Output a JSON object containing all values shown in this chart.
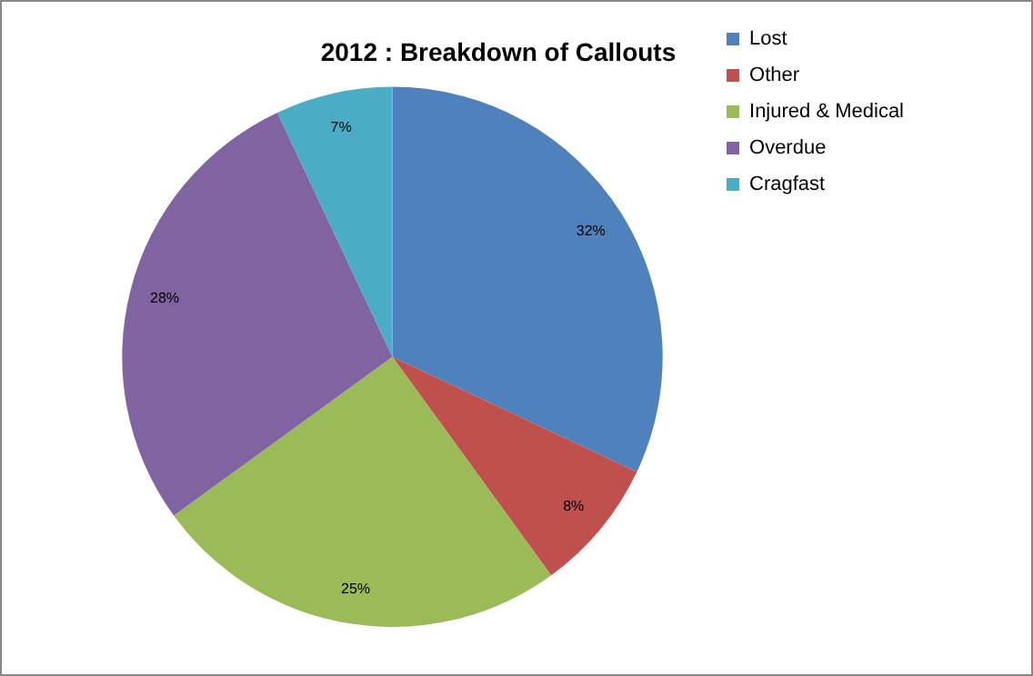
{
  "chart_data": {
    "type": "pie",
    "title": "2012 : Breakdown of Callouts",
    "categories": [
      "Lost",
      "Other",
      "Injured & Medical",
      "Overdue",
      "Cragfast"
    ],
    "values": [
      32,
      8,
      25,
      28,
      7
    ],
    "colors": [
      "#4f81bd",
      "#c0504d",
      "#9bbb59",
      "#8064a2",
      "#4bacc6"
    ],
    "value_labels": [
      "32%",
      "8%",
      "25%",
      "28%",
      "7%"
    ],
    "legend": "right"
  }
}
